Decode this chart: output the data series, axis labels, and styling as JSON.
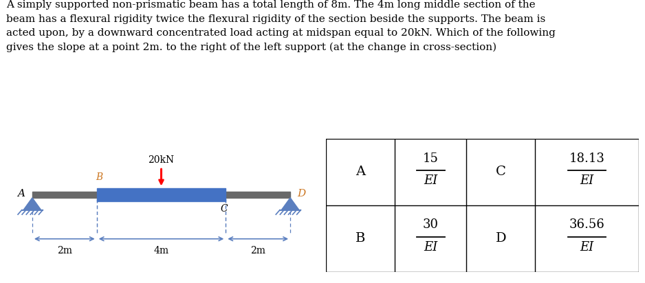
{
  "title_text": "A simply supported non-prismatic beam has a total length of 8m. The 4m long middle section of the\nbeam has a flexural rigidity twice the flexural rigidity of the section beside the supports. The beam is\nacted upon, by a downward concentrated load acting at midspan equal to 20kN. Which of the following\ngives the slope at a point 2m. to the right of the left support (at the change in cross-section)",
  "load_label": "20kN",
  "beam_color_outer": "#696969",
  "beam_color_inner": "#4472C4",
  "support_color": "#5B7FBF",
  "dim_color": "#5B7FBF",
  "label_color_orange": "#CC7722",
  "label_A": "A",
  "label_B": "B",
  "label_C": "C",
  "label_D": "D",
  "dim_2m": "2m",
  "dim_4m": "4m",
  "dim_2m2": "2m",
  "table_entries": [
    {
      "key": "A",
      "num": "15",
      "den": "EI"
    },
    {
      "key": "C",
      "num": "18.13",
      "den": "EI"
    },
    {
      "key": "B",
      "num": "30",
      "den": "EI"
    },
    {
      "key": "D",
      "num": "36.56",
      "den": "EI"
    }
  ],
  "bg_color": "#ffffff"
}
